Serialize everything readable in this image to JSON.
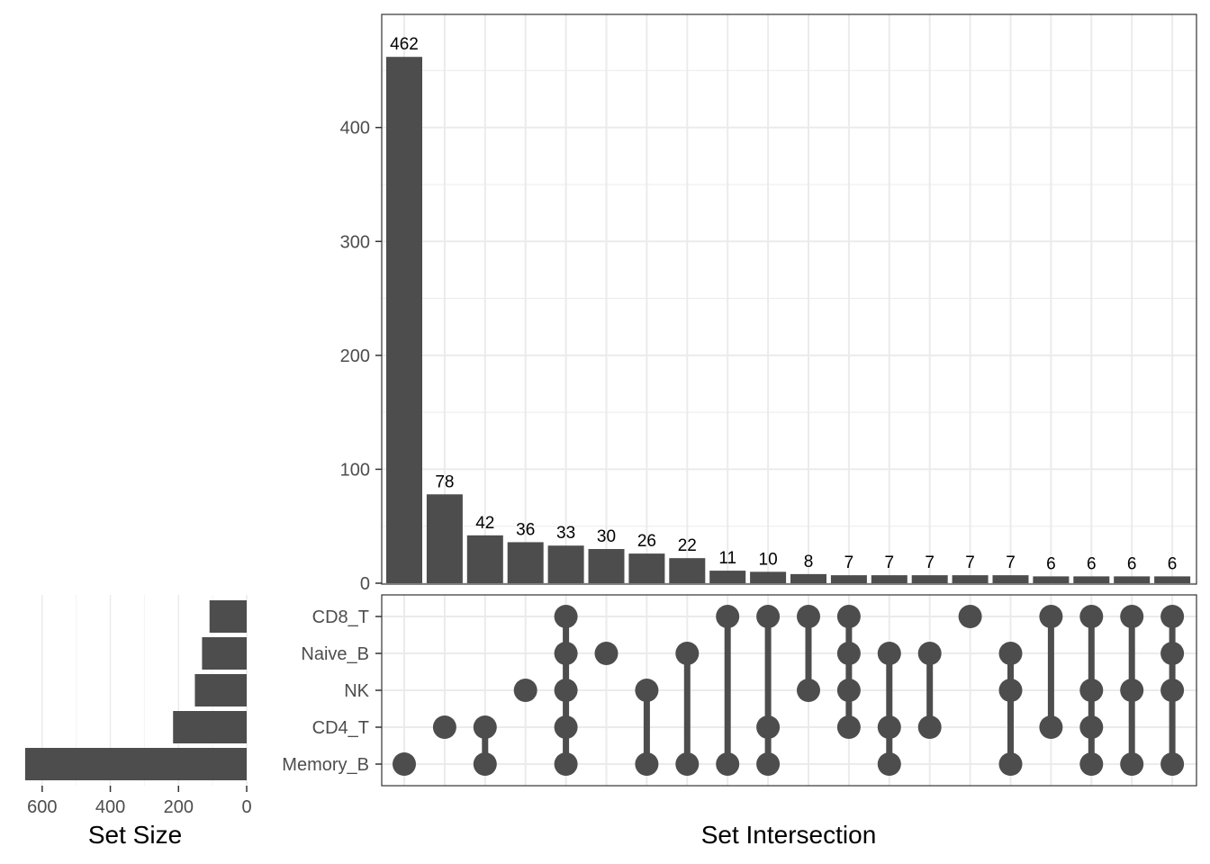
{
  "chart_data": {
    "type": "upset",
    "sets": [
      "Memory_B",
      "CD4_T",
      "NK",
      "Naive_B",
      "CD8_T"
    ],
    "set_sizes": [
      650,
      216,
      152,
      131,
      109
    ],
    "intersections": [
      {
        "members": [
          "Memory_B"
        ],
        "value": 462
      },
      {
        "members": [
          "CD4_T"
        ],
        "value": 78
      },
      {
        "members": [
          "Memory_B",
          "CD4_T"
        ],
        "value": 42
      },
      {
        "members": [
          "NK"
        ],
        "value": 36
      },
      {
        "members": [
          "Memory_B",
          "CD4_T",
          "NK",
          "Naive_B",
          "CD8_T"
        ],
        "value": 33
      },
      {
        "members": [
          "Naive_B"
        ],
        "value": 30
      },
      {
        "members": [
          "Memory_B",
          "NK"
        ],
        "value": 26
      },
      {
        "members": [
          "Memory_B",
          "Naive_B"
        ],
        "value": 22
      },
      {
        "members": [
          "Memory_B",
          "CD8_T"
        ],
        "value": 11
      },
      {
        "members": [
          "Memory_B",
          "CD4_T",
          "CD8_T"
        ],
        "value": 10
      },
      {
        "members": [
          "NK",
          "CD8_T"
        ],
        "value": 8
      },
      {
        "members": [
          "CD4_T",
          "NK",
          "Naive_B",
          "CD8_T"
        ],
        "value": 7
      },
      {
        "members": [
          "Memory_B",
          "CD4_T",
          "Naive_B"
        ],
        "value": 7
      },
      {
        "members": [
          "CD4_T",
          "Naive_B"
        ],
        "value": 7
      },
      {
        "members": [
          "CD8_T"
        ],
        "value": 7
      },
      {
        "members": [
          "Memory_B",
          "NK",
          "Naive_B"
        ],
        "value": 7
      },
      {
        "members": [
          "CD4_T",
          "CD8_T"
        ],
        "value": 6
      },
      {
        "members": [
          "Memory_B",
          "CD4_T",
          "NK",
          "CD8_T"
        ],
        "value": 6
      },
      {
        "members": [
          "Memory_B",
          "NK",
          "CD8_T"
        ],
        "value": 6
      },
      {
        "members": [
          "Memory_B",
          "NK",
          "Naive_B",
          "CD8_T"
        ],
        "value": 6
      }
    ],
    "intersection_axis": {
      "ticks": [
        0,
        100,
        200,
        300,
        400
      ],
      "max": 500
    },
    "set_size_axis": {
      "ticks": [
        600,
        400,
        200,
        0
      ],
      "max": 650
    },
    "xlabel": "Set Intersection",
    "set_size_label": "Set Size",
    "grid": true,
    "colors": {
      "bar": "#4d4d4d",
      "dot": "#4d4d4d",
      "grid": "#ebebeb",
      "panel_border": "#333333"
    }
  }
}
